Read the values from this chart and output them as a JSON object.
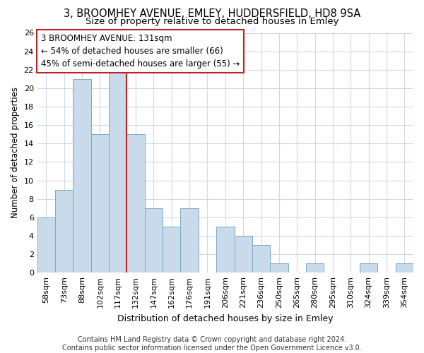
{
  "title": "3, BROOMHEY AVENUE, EMLEY, HUDDERSFIELD, HD8 9SA",
  "subtitle": "Size of property relative to detached houses in Emley",
  "xlabel": "Distribution of detached houses by size in Emley",
  "ylabel": "Number of detached properties",
  "categories": [
    "58sqm",
    "73sqm",
    "88sqm",
    "102sqm",
    "117sqm",
    "132sqm",
    "147sqm",
    "162sqm",
    "176sqm",
    "191sqm",
    "206sqm",
    "221sqm",
    "236sqm",
    "250sqm",
    "265sqm",
    "280sqm",
    "295sqm",
    "310sqm",
    "324sqm",
    "339sqm",
    "354sqm"
  ],
  "values": [
    6,
    9,
    21,
    15,
    22,
    15,
    7,
    5,
    7,
    0,
    5,
    4,
    3,
    1,
    0,
    1,
    0,
    0,
    1,
    0,
    1
  ],
  "bar_color": "#c9daea",
  "bar_edge_color": "#7aaac8",
  "vline_color": "#bb2222",
  "annotation_text": "3 BROOMHEY AVENUE: 131sqm\n← 54% of detached houses are smaller (66)\n45% of semi-detached houses are larger (55) →",
  "annotation_box_color": "#bb2222",
  "ylim": [
    0,
    26
  ],
  "yticks": [
    0,
    2,
    4,
    6,
    8,
    10,
    12,
    14,
    16,
    18,
    20,
    22,
    24,
    26
  ],
  "footer": "Contains HM Land Registry data © Crown copyright and database right 2024.\nContains public sector information licensed under the Open Government Licence v3.0.",
  "background_color": "#ffffff",
  "grid_color": "#d0d8e8",
  "title_fontsize": 10.5,
  "subtitle_fontsize": 9.5,
  "xlabel_fontsize": 9,
  "ylabel_fontsize": 8.5,
  "tick_fontsize": 8,
  "annotation_fontsize": 8.5,
  "footer_fontsize": 7
}
